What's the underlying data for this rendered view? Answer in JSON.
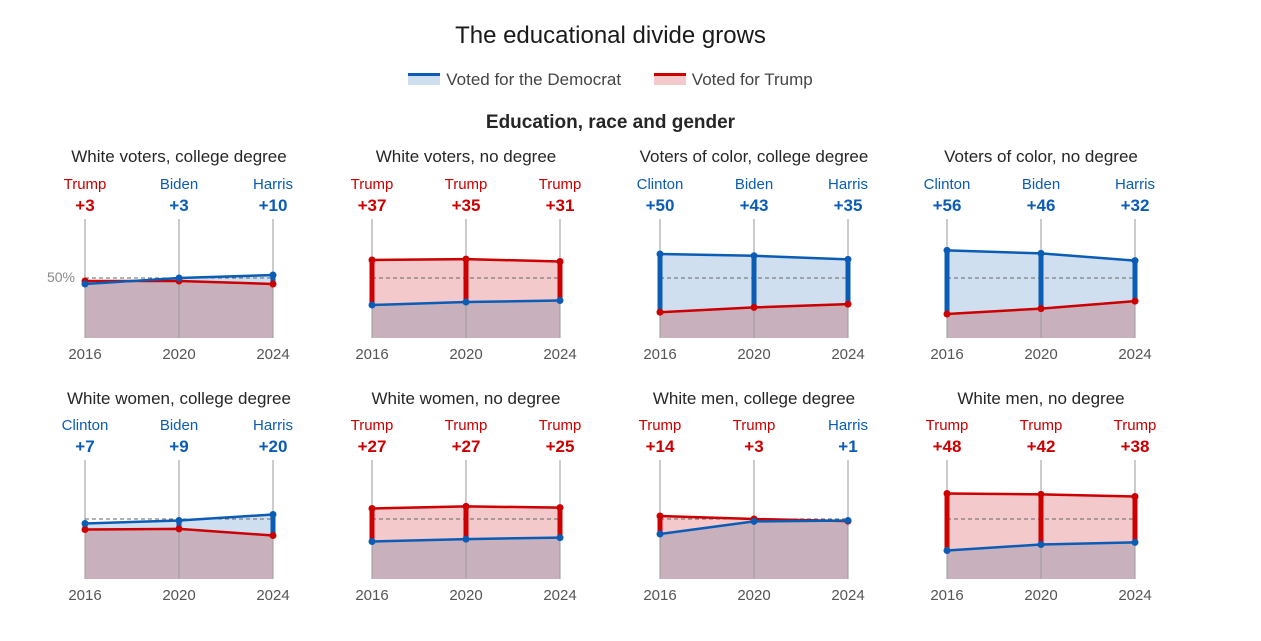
{
  "title": "The educational divide grows",
  "legend": {
    "dem_label": "Voted for the Democrat",
    "rep_label": "Voted for Trump"
  },
  "section_title": "Education, race and gender",
  "colors": {
    "dem": "#0b5cb5",
    "rep": "#cc0000",
    "dem_fill": "#cfdff0",
    "rep_fill": "#f4c9cc",
    "overlap_fill": "#c9b0bd"
  },
  "reference_label": "50%",
  "chart_data": [
    {
      "type": "area",
      "title": "White voters, college degree",
      "x": [
        "2016",
        "2020",
        "2024"
      ],
      "ylim": [
        30,
        60
      ],
      "series": [
        {
          "name": "Voted for the Democrat",
          "values": [
            48,
            50,
            51
          ]
        },
        {
          "name": "Voted for Trump",
          "values": [
            49,
            49,
            48
          ]
        }
      ],
      "annotations": [
        {
          "winner": "Trump",
          "party": "rep",
          "margin": "+3"
        },
        {
          "winner": "Biden",
          "party": "dem",
          "margin": "+3"
        },
        {
          "winner": "Harris",
          "party": "dem",
          "margin": "+10"
        }
      ]
    },
    {
      "type": "area",
      "title": "White voters, no degree",
      "x": [
        "2016",
        "2020",
        "2024"
      ],
      "ylim": [
        30,
        60
      ],
      "series": [
        {
          "name": "Voted for the Democrat",
          "values": [
            41,
            42,
            42.5
          ]
        },
        {
          "name": "Voted for Trump",
          "values": [
            56,
            56.3,
            55.5
          ]
        }
      ],
      "annotations": [
        {
          "winner": "Trump",
          "party": "rep",
          "margin": "+37"
        },
        {
          "winner": "Trump",
          "party": "rep",
          "margin": "+35"
        },
        {
          "winner": "Trump",
          "party": "rep",
          "margin": "+31"
        }
      ]
    },
    {
      "type": "area",
      "title": "Voters of color, college degree",
      "x": [
        "2016",
        "2020",
        "2024"
      ],
      "ylim": [
        30,
        60
      ],
      "series": [
        {
          "name": "Voted for the Democrat",
          "values": [
            58,
            57.4,
            56.2
          ]
        },
        {
          "name": "Voted for Trump",
          "values": [
            38.6,
            40.2,
            41.3
          ]
        }
      ],
      "annotations": [
        {
          "winner": "Clinton",
          "party": "dem",
          "margin": "+50"
        },
        {
          "winner": "Biden",
          "party": "dem",
          "margin": "+43"
        },
        {
          "winner": "Harris",
          "party": "dem",
          "margin": "+35"
        }
      ]
    },
    {
      "type": "area",
      "title": "Voters of color, no degree",
      "x": [
        "2016",
        "2020",
        "2024"
      ],
      "ylim": [
        30,
        60
      ],
      "series": [
        {
          "name": "Voted for the Democrat",
          "values": [
            59.2,
            58.2,
            55.8
          ]
        },
        {
          "name": "Voted for Trump",
          "values": [
            38,
            39.8,
            42.3
          ]
        }
      ],
      "annotations": [
        {
          "winner": "Clinton",
          "party": "dem",
          "margin": "+56"
        },
        {
          "winner": "Biden",
          "party": "dem",
          "margin": "+46"
        },
        {
          "winner": "Harris",
          "party": "dem",
          "margin": "+32"
        }
      ]
    },
    {
      "type": "area",
      "title": "White women, college degree",
      "x": [
        "2016",
        "2020",
        "2024"
      ],
      "ylim": [
        30,
        60
      ],
      "series": [
        {
          "name": "Voted for the Democrat",
          "values": [
            48.5,
            49.5,
            51.5
          ]
        },
        {
          "name": "Voted for Trump",
          "values": [
            46.5,
            46.7,
            44.5
          ]
        }
      ],
      "annotations": [
        {
          "winner": "Clinton",
          "party": "dem",
          "margin": "+7"
        },
        {
          "winner": "Biden",
          "party": "dem",
          "margin": "+9"
        },
        {
          "winner": "Harris",
          "party": "dem",
          "margin": "+20"
        }
      ]
    },
    {
      "type": "area",
      "title": "White women, no degree",
      "x": [
        "2016",
        "2020",
        "2024"
      ],
      "ylim": [
        30,
        60
      ],
      "series": [
        {
          "name": "Voted for the Democrat",
          "values": [
            42.5,
            43.3,
            43.8
          ]
        },
        {
          "name": "Voted for Trump",
          "values": [
            53.5,
            54.2,
            53.8
          ]
        }
      ],
      "annotations": [
        {
          "winner": "Trump",
          "party": "rep",
          "margin": "+27"
        },
        {
          "winner": "Trump",
          "party": "rep",
          "margin": "+27"
        },
        {
          "winner": "Trump",
          "party": "rep",
          "margin": "+25"
        }
      ]
    },
    {
      "type": "area",
      "title": "White men, college degree",
      "x": [
        "2016",
        "2020",
        "2024"
      ],
      "ylim": [
        30,
        60
      ],
      "series": [
        {
          "name": "Voted for the Democrat",
          "values": [
            45,
            49.2,
            49.5
          ]
        },
        {
          "name": "Voted for Trump",
          "values": [
            51,
            50,
            49.3
          ]
        }
      ],
      "annotations": [
        {
          "winner": "Trump",
          "party": "rep",
          "margin": "+14"
        },
        {
          "winner": "Trump",
          "party": "rep",
          "margin": "+3"
        },
        {
          "winner": "Harris",
          "party": "dem",
          "margin": "+1"
        }
      ]
    },
    {
      "type": "area",
      "title": "White men, no degree",
      "x": [
        "2016",
        "2020",
        "2024"
      ],
      "ylim": [
        30,
        60
      ],
      "series": [
        {
          "name": "Voted for the Democrat",
          "values": [
            39.5,
            41.5,
            42.2
          ]
        },
        {
          "name": "Voted for Trump",
          "values": [
            58.5,
            58.2,
            57.5
          ]
        }
      ],
      "annotations": [
        {
          "winner": "Trump",
          "party": "rep",
          "margin": "+48"
        },
        {
          "winner": "Trump",
          "party": "rep",
          "margin": "+42"
        },
        {
          "winner": "Trump",
          "party": "rep",
          "margin": "+38"
        }
      ]
    }
  ]
}
